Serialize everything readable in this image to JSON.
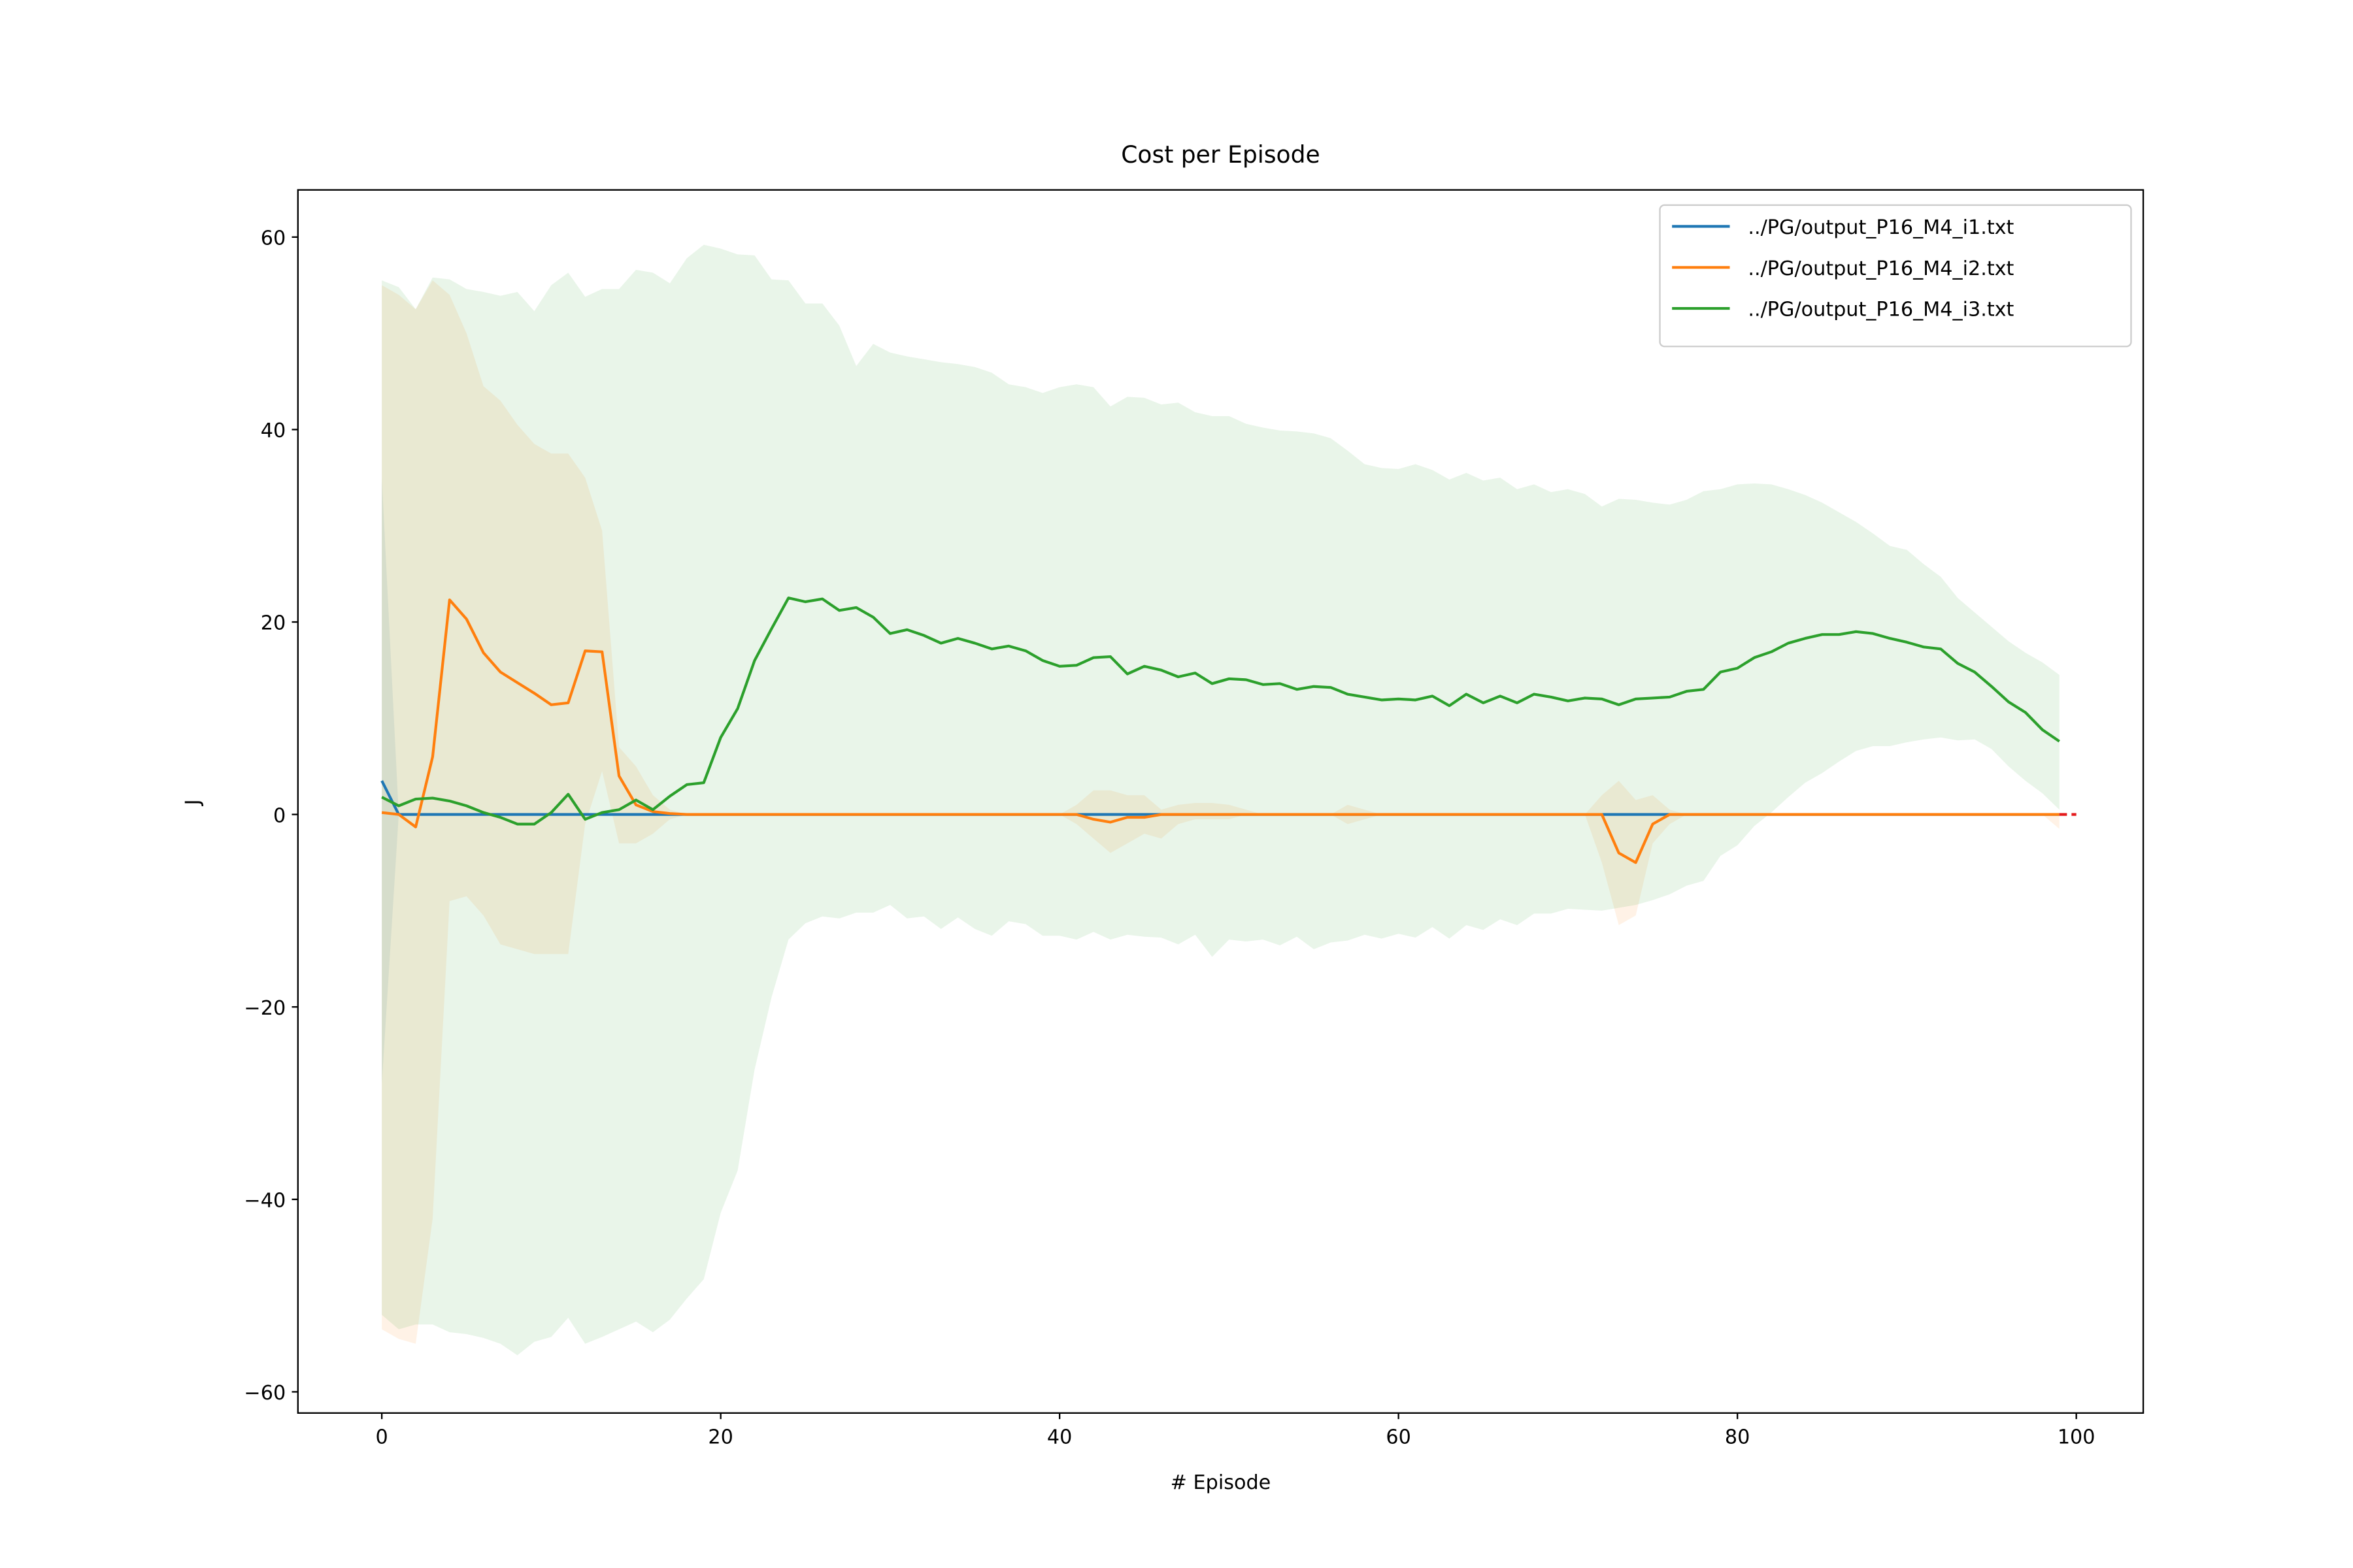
{
  "chart_data": {
    "type": "line",
    "title": "Cost per Episode",
    "x_label": "# Episode",
    "y_label": "J",
    "xlim": [
      -4.95,
      103.95
    ],
    "ylim": [
      -62.2,
      64.9
    ],
    "xticks": [
      0,
      20,
      40,
      60,
      80,
      100
    ],
    "yticks": [
      {
        "value": -60,
        "label": "−60"
      },
      {
        "value": -40,
        "label": "−40"
      },
      {
        "value": -20,
        "label": "−20"
      },
      0,
      20,
      40,
      60
    ],
    "legend": "upper right",
    "reference_line": {
      "y": 0,
      "x": [
        99,
        100
      ],
      "color": "#e41a1c"
    },
    "x": [
      0,
      1,
      2,
      3,
      4,
      5,
      6,
      7,
      8,
      9,
      10,
      11,
      12,
      13,
      14,
      15,
      16,
      17,
      18,
      19,
      20,
      21,
      22,
      23,
      24,
      25,
      26,
      27,
      28,
      29,
      30,
      31,
      32,
      33,
      34,
      35,
      36,
      37,
      38,
      39,
      40,
      41,
      42,
      43,
      44,
      45,
      46,
      47,
      48,
      49,
      50,
      51,
      52,
      53,
      54,
      55,
      56,
      57,
      58,
      59,
      60,
      61,
      62,
      63,
      64,
      65,
      66,
      67,
      68,
      69,
      70,
      71,
      72,
      73,
      74,
      75,
      76,
      77,
      78,
      79,
      80,
      81,
      82,
      83,
      84,
      85,
      86,
      87,
      88,
      89,
      90,
      91,
      92,
      93,
      94,
      95,
      96,
      97,
      98,
      99
    ],
    "series": [
      {
        "name": "../PG/output_P16_M4_i1.txt",
        "color": "#1f77b4",
        "values": [
          3.5,
          0,
          0,
          0,
          0,
          0,
          0,
          0,
          0,
          0,
          0,
          0,
          0,
          0,
          0,
          0,
          0,
          0,
          0,
          0,
          0,
          0,
          0,
          0,
          0,
          0,
          0,
          0,
          0,
          0,
          0,
          0,
          0,
          0,
          0,
          0,
          0,
          0,
          0,
          0,
          0,
          0,
          0,
          0,
          0,
          0,
          0,
          0,
          0,
          0,
          0,
          0,
          0,
          0,
          0,
          0,
          0,
          0,
          0,
          0,
          0,
          0,
          0,
          0,
          0,
          0,
          0,
          0,
          0,
          0,
          0,
          0,
          0,
          0,
          0,
          0,
          0,
          0,
          0,
          0,
          0,
          0,
          0,
          0,
          0,
          0,
          0,
          0,
          0,
          0,
          0,
          0,
          0,
          0,
          0,
          0,
          0,
          0,
          0,
          0
        ],
        "upper": [
          35,
          0,
          0,
          0,
          0,
          0,
          0,
          0,
          0,
          0,
          0,
          0,
          0,
          0,
          0,
          0,
          0,
          0,
          0,
          0,
          0,
          0,
          0,
          0,
          0,
          0,
          0,
          0,
          0,
          0,
          0,
          0,
          0,
          0,
          0,
          0,
          0,
          0,
          0,
          0,
          0,
          0,
          0,
          0,
          0,
          0,
          0,
          0,
          0,
          0,
          0,
          0,
          0,
          0,
          0,
          0,
          0,
          0,
          0,
          0,
          0,
          0,
          0,
          0,
          0,
          0,
          0,
          0,
          0,
          0,
          0,
          0,
          0,
          0,
          0,
          0,
          0,
          0,
          0,
          0,
          0,
          0,
          0,
          0,
          0,
          0,
          0,
          0,
          0,
          0,
          0,
          0,
          0,
          0,
          0,
          0,
          0,
          0,
          0,
          0
        ],
        "lower": [
          -28,
          0,
          0,
          0,
          0,
          0,
          0,
          0,
          0,
          0,
          0,
          0,
          0,
          0,
          0,
          0,
          0,
          0,
          0,
          0,
          0,
          0,
          0,
          0,
          0,
          0,
          0,
          0,
          0,
          0,
          0,
          0,
          0,
          0,
          0,
          0,
          0,
          0,
          0,
          0,
          0,
          0,
          0,
          0,
          0,
          0,
          0,
          0,
          0,
          0,
          0,
          0,
          0,
          0,
          0,
          0,
          0,
          0,
          0,
          0,
          0,
          0,
          0,
          0,
          0,
          0,
          0,
          0,
          0,
          0,
          0,
          0,
          0,
          0,
          0,
          0,
          0,
          0,
          0,
          0,
          0,
          0,
          0,
          0,
          0,
          0,
          0,
          0,
          0,
          0,
          0,
          0,
          0,
          0,
          0,
          0,
          0,
          0,
          0,
          0
        ]
      },
      {
        "name": "../PG/output_P16_M4_i2.txt",
        "color": "#ff7f0e",
        "values": [
          0.2,
          0,
          -1.3,
          6,
          22.3,
          20.3,
          16.8,
          14.8,
          13.7,
          12.6,
          11.4,
          11.6,
          17,
          16.9,
          4,
          1,
          0.3,
          0.1,
          0,
          0,
          0,
          0,
          0,
          0,
          0,
          0,
          0,
          0,
          0,
          0,
          0,
          0,
          0,
          0,
          0,
          0,
          0,
          0,
          0,
          0,
          0,
          0,
          -0.5,
          -0.8,
          -0.3,
          -0.3,
          0,
          0,
          0,
          0,
          0,
          0,
          0,
          0,
          0,
          0,
          0,
          0,
          0,
          0,
          0,
          0,
          0,
          0,
          0,
          0,
          0,
          0,
          0,
          0,
          0,
          0,
          0,
          -4,
          -5,
          -1,
          0,
          0,
          0,
          0,
          0,
          0,
          0,
          0,
          0,
          0,
          0,
          0,
          0,
          0,
          0,
          0,
          0,
          0,
          0,
          0,
          0,
          0,
          0,
          0
        ],
        "upper": [
          55,
          54,
          52.5,
          55.5,
          54,
          50,
          44.5,
          43,
          40.5,
          38.5,
          37.5,
          37.5,
          35,
          29.5,
          7,
          5,
          2,
          0.5,
          0,
          0,
          0,
          0,
          0,
          0,
          0,
          0,
          0,
          0,
          0,
          0,
          0,
          0,
          0,
          0,
          0,
          0,
          0,
          0,
          0,
          0,
          0,
          1,
          2.5,
          2.5,
          2,
          2,
          0.5,
          1,
          1.2,
          1.2,
          1,
          0.5,
          0,
          0,
          0,
          0,
          0,
          1,
          0.5,
          0,
          0,
          0,
          0,
          0,
          0,
          0,
          0,
          0,
          0,
          0,
          0,
          0,
          2,
          3.5,
          1.5,
          2,
          0.5,
          0,
          0,
          0,
          0,
          0,
          0,
          0,
          0,
          0,
          0,
          0,
          0,
          0,
          0,
          0,
          0,
          0,
          0,
          0,
          0,
          0,
          0,
          0
        ],
        "lower": [
          -53.5,
          -54.5,
          -55,
          -42,
          -9,
          -8.5,
          -10.5,
          -13.5,
          -14,
          -14.5,
          -14.5,
          -14.5,
          -1,
          4.5,
          -3,
          -3,
          -2,
          -0.5,
          0,
          0,
          0,
          0,
          0,
          0,
          0,
          0,
          0,
          0,
          0,
          0,
          0,
          0,
          0,
          0,
          0,
          0,
          0,
          0,
          0,
          0,
          0,
          -1,
          -2.5,
          -4,
          -3,
          -2,
          -2.5,
          -1,
          -0.5,
          -0.5,
          -0.5,
          0,
          0,
          0,
          0,
          0,
          0,
          -1,
          -0.5,
          0,
          0,
          0,
          0,
          0,
          0,
          0,
          0,
          0,
          0,
          0,
          0,
          0,
          -5,
          -11.5,
          -10.5,
          -3,
          -1,
          0,
          0,
          0,
          0,
          0,
          0,
          0,
          0,
          0,
          0,
          0,
          0,
          0,
          0,
          0,
          0,
          0,
          0,
          0,
          0,
          0,
          0,
          -1.5
        ]
      },
      {
        "name": "../PG/output_P16_M4_i3.txt",
        "color": "#2ca02c",
        "values": [
          1.8,
          0.9,
          1.6,
          1.7,
          1.4,
          0.9,
          0.2,
          -0.3,
          -1,
          -1,
          0.2,
          2.1,
          -0.5,
          0.2,
          0.5,
          1.5,
          0.5,
          1.9,
          3.1,
          3.3,
          8,
          11,
          16,
          19.3,
          22.5,
          22.1,
          22.4,
          21.2,
          21.5,
          20.5,
          18.8,
          19.2,
          18.6,
          17.8,
          18.3,
          17.8,
          17.2,
          17.5,
          17,
          16,
          15.4,
          15.5,
          16.3,
          16.4,
          14.6,
          15.4,
          15,
          14.3,
          14.7,
          13.6,
          14.1,
          14,
          13.5,
          13.6,
          13,
          13.3,
          13.2,
          12.5,
          12.2,
          11.9,
          12,
          11.9,
          12.3,
          11.3,
          12.5,
          11.6,
          12.3,
          11.6,
          12.5,
          12.2,
          11.8,
          12.1,
          12,
          11.4,
          12,
          12.1,
          12.2,
          12.8,
          13,
          14.8,
          15.2,
          16.3,
          16.9,
          17.8,
          18.3,
          18.7,
          18.7,
          19,
          18.8,
          18.3,
          17.9,
          17.4,
          17.2,
          15.7,
          14.8,
          13.3,
          11.7,
          10.6,
          8.8,
          7.6
        ],
        "upper": [
          55.5,
          54.8,
          52.5,
          55.8,
          55.6,
          54.6,
          54.3,
          53.9,
          54.3,
          52.3,
          55,
          56.3,
          53.8,
          54.6,
          54.6,
          56.6,
          56.3,
          55.2,
          57.8,
          59.2,
          58.8,
          58.2,
          58.1,
          55.6,
          55.5,
          53.1,
          53.1,
          50.8,
          46.6,
          48.9,
          48,
          47.6,
          47.3,
          47,
          46.8,
          46.5,
          45.9,
          44.7,
          44.4,
          43.8,
          44.4,
          44.7,
          44.4,
          42.4,
          43.4,
          43.3,
          42.6,
          42.8,
          41.8,
          41.4,
          41.4,
          40.6,
          40.2,
          39.9,
          39.8,
          39.6,
          39.1,
          37.8,
          36.4,
          36,
          35.9,
          36.4,
          35.8,
          34.8,
          35.5,
          34.7,
          35,
          33.8,
          34.3,
          33.5,
          33.8,
          33.3,
          32,
          32.8,
          32.7,
          32.4,
          32.2,
          32.7,
          33.6,
          33.8,
          34.3,
          34.4,
          34.3,
          33.8,
          33.2,
          32.4,
          31.4,
          30.4,
          29.2,
          27.9,
          27.5,
          26,
          24.7,
          22.5,
          21,
          19.5,
          18,
          16.8,
          15.8,
          14.5
        ],
        "lower": [
          -52,
          -53.5,
          -53,
          -53,
          -53.8,
          -54,
          -54.4,
          -55,
          -56.2,
          -54.8,
          -54.3,
          -52.3,
          -55,
          -54.3,
          -53.5,
          -52.7,
          -53.8,
          -52.5,
          -50.3,
          -48.3,
          -41.4,
          -37,
          -26.5,
          -19,
          -13,
          -11.3,
          -10.6,
          -10.8,
          -10.2,
          -10.2,
          -9.4,
          -10.8,
          -10.6,
          -11.9,
          -10.7,
          -11.9,
          -12.6,
          -11.1,
          -11.4,
          -12.6,
          -12.6,
          -13,
          -12.2,
          -13,
          -12.5,
          -12.7,
          -12.8,
          -13.5,
          -12.5,
          -14.8,
          -13,
          -13.2,
          -13,
          -13.6,
          -12.7,
          -14,
          -13.3,
          -13.1,
          -12.5,
          -12.9,
          -12.4,
          -12.8,
          -11.7,
          -12.9,
          -11.5,
          -12,
          -10.9,
          -11.5,
          -10.3,
          -10.3,
          -9.8,
          -9.9,
          -10,
          -9.7,
          -9.4,
          -8.9,
          -8.3,
          -7.4,
          -6.9,
          -4.3,
          -3.2,
          -1.2,
          0.2,
          1.8,
          3.3,
          4.3,
          5.5,
          6.6,
          7.1,
          7.1,
          7.5,
          7.8,
          8,
          7.7,
          7.8,
          6.8,
          5,
          3.5,
          2.2,
          0.5
        ]
      }
    ]
  }
}
